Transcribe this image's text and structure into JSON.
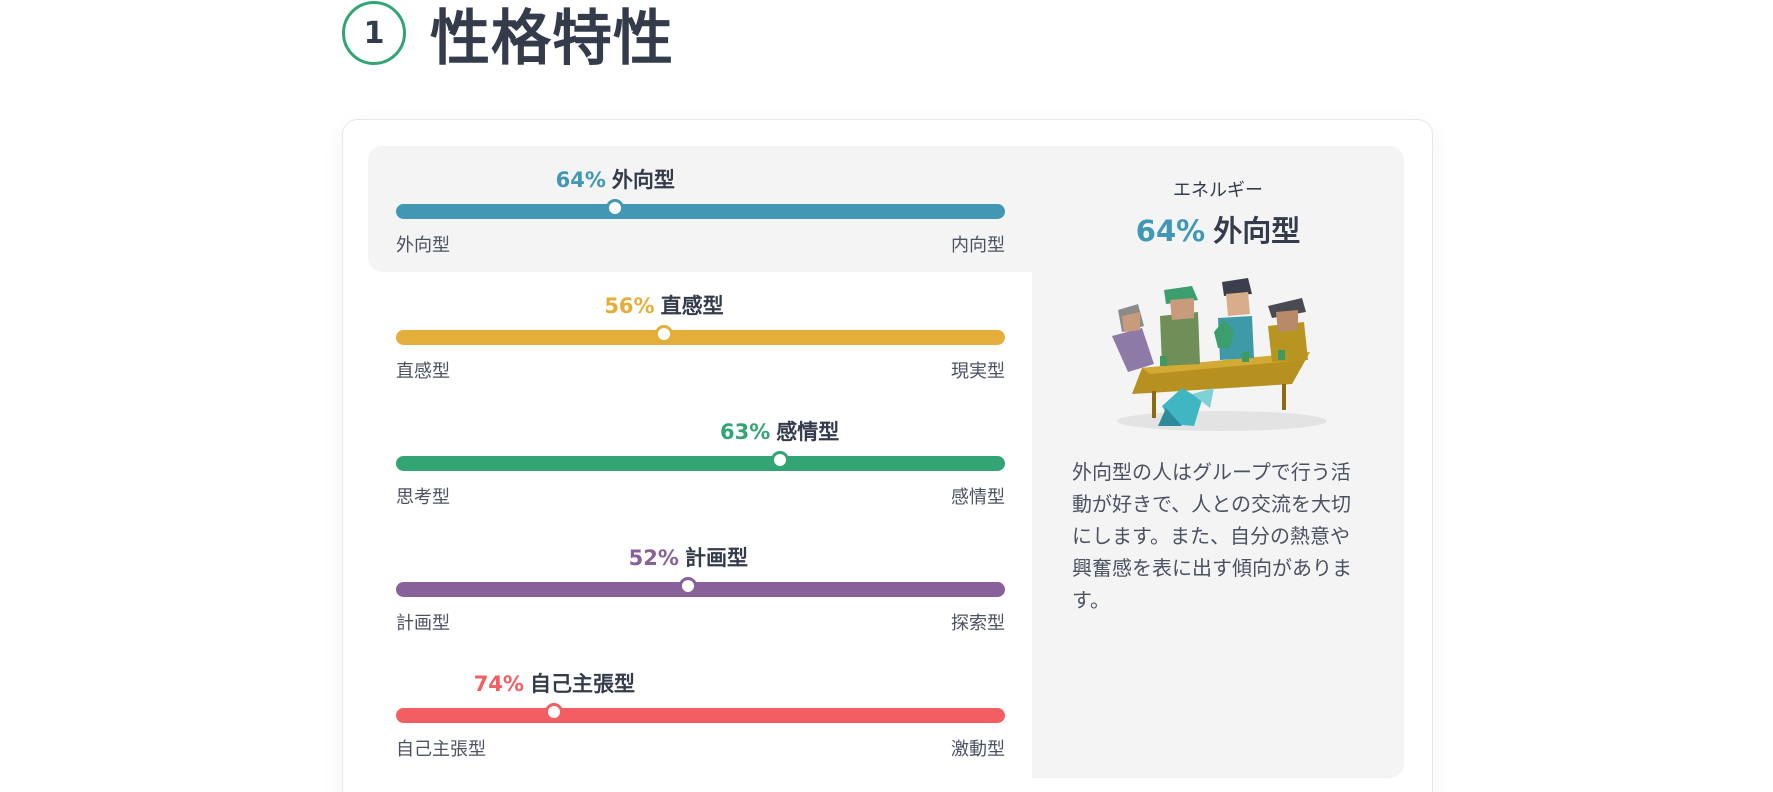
{
  "section": {
    "number": "1",
    "title": "性格特性"
  },
  "traits": [
    {
      "percent": "64%",
      "name": "外向型",
      "left_label": "外向型",
      "right_label": "内向型",
      "color": "#4298b4",
      "position": 0.36,
      "active": true
    },
    {
      "percent": "56%",
      "name": "直感型",
      "left_label": "直感型",
      "right_label": "現実型",
      "color": "#e4ae3a",
      "position": 0.44,
      "active": false
    },
    {
      "percent": "63%",
      "name": "感情型",
      "left_label": "思考型",
      "right_label": "感情型",
      "color": "#33a474",
      "position": 0.63,
      "active": false
    },
    {
      "percent": "52%",
      "name": "計画型",
      "left_label": "計画型",
      "right_label": "探索型",
      "color": "#88619a",
      "position": 0.48,
      "active": false
    },
    {
      "percent": "74%",
      "name": "自己主張型",
      "left_label": "自己主張型",
      "right_label": "激動型",
      "color": "#f25e62",
      "position": 0.26,
      "active": false
    }
  ],
  "detail": {
    "category": "エネルギー",
    "percent": "64%",
    "name": "外向型",
    "description": "外向型の人はグループで行う活動が好きで、人との交流を大切にします。また、自分の熱意や興奮感を表に出す傾向があります。",
    "illustration_icon": "group-at-table-illustration"
  }
}
